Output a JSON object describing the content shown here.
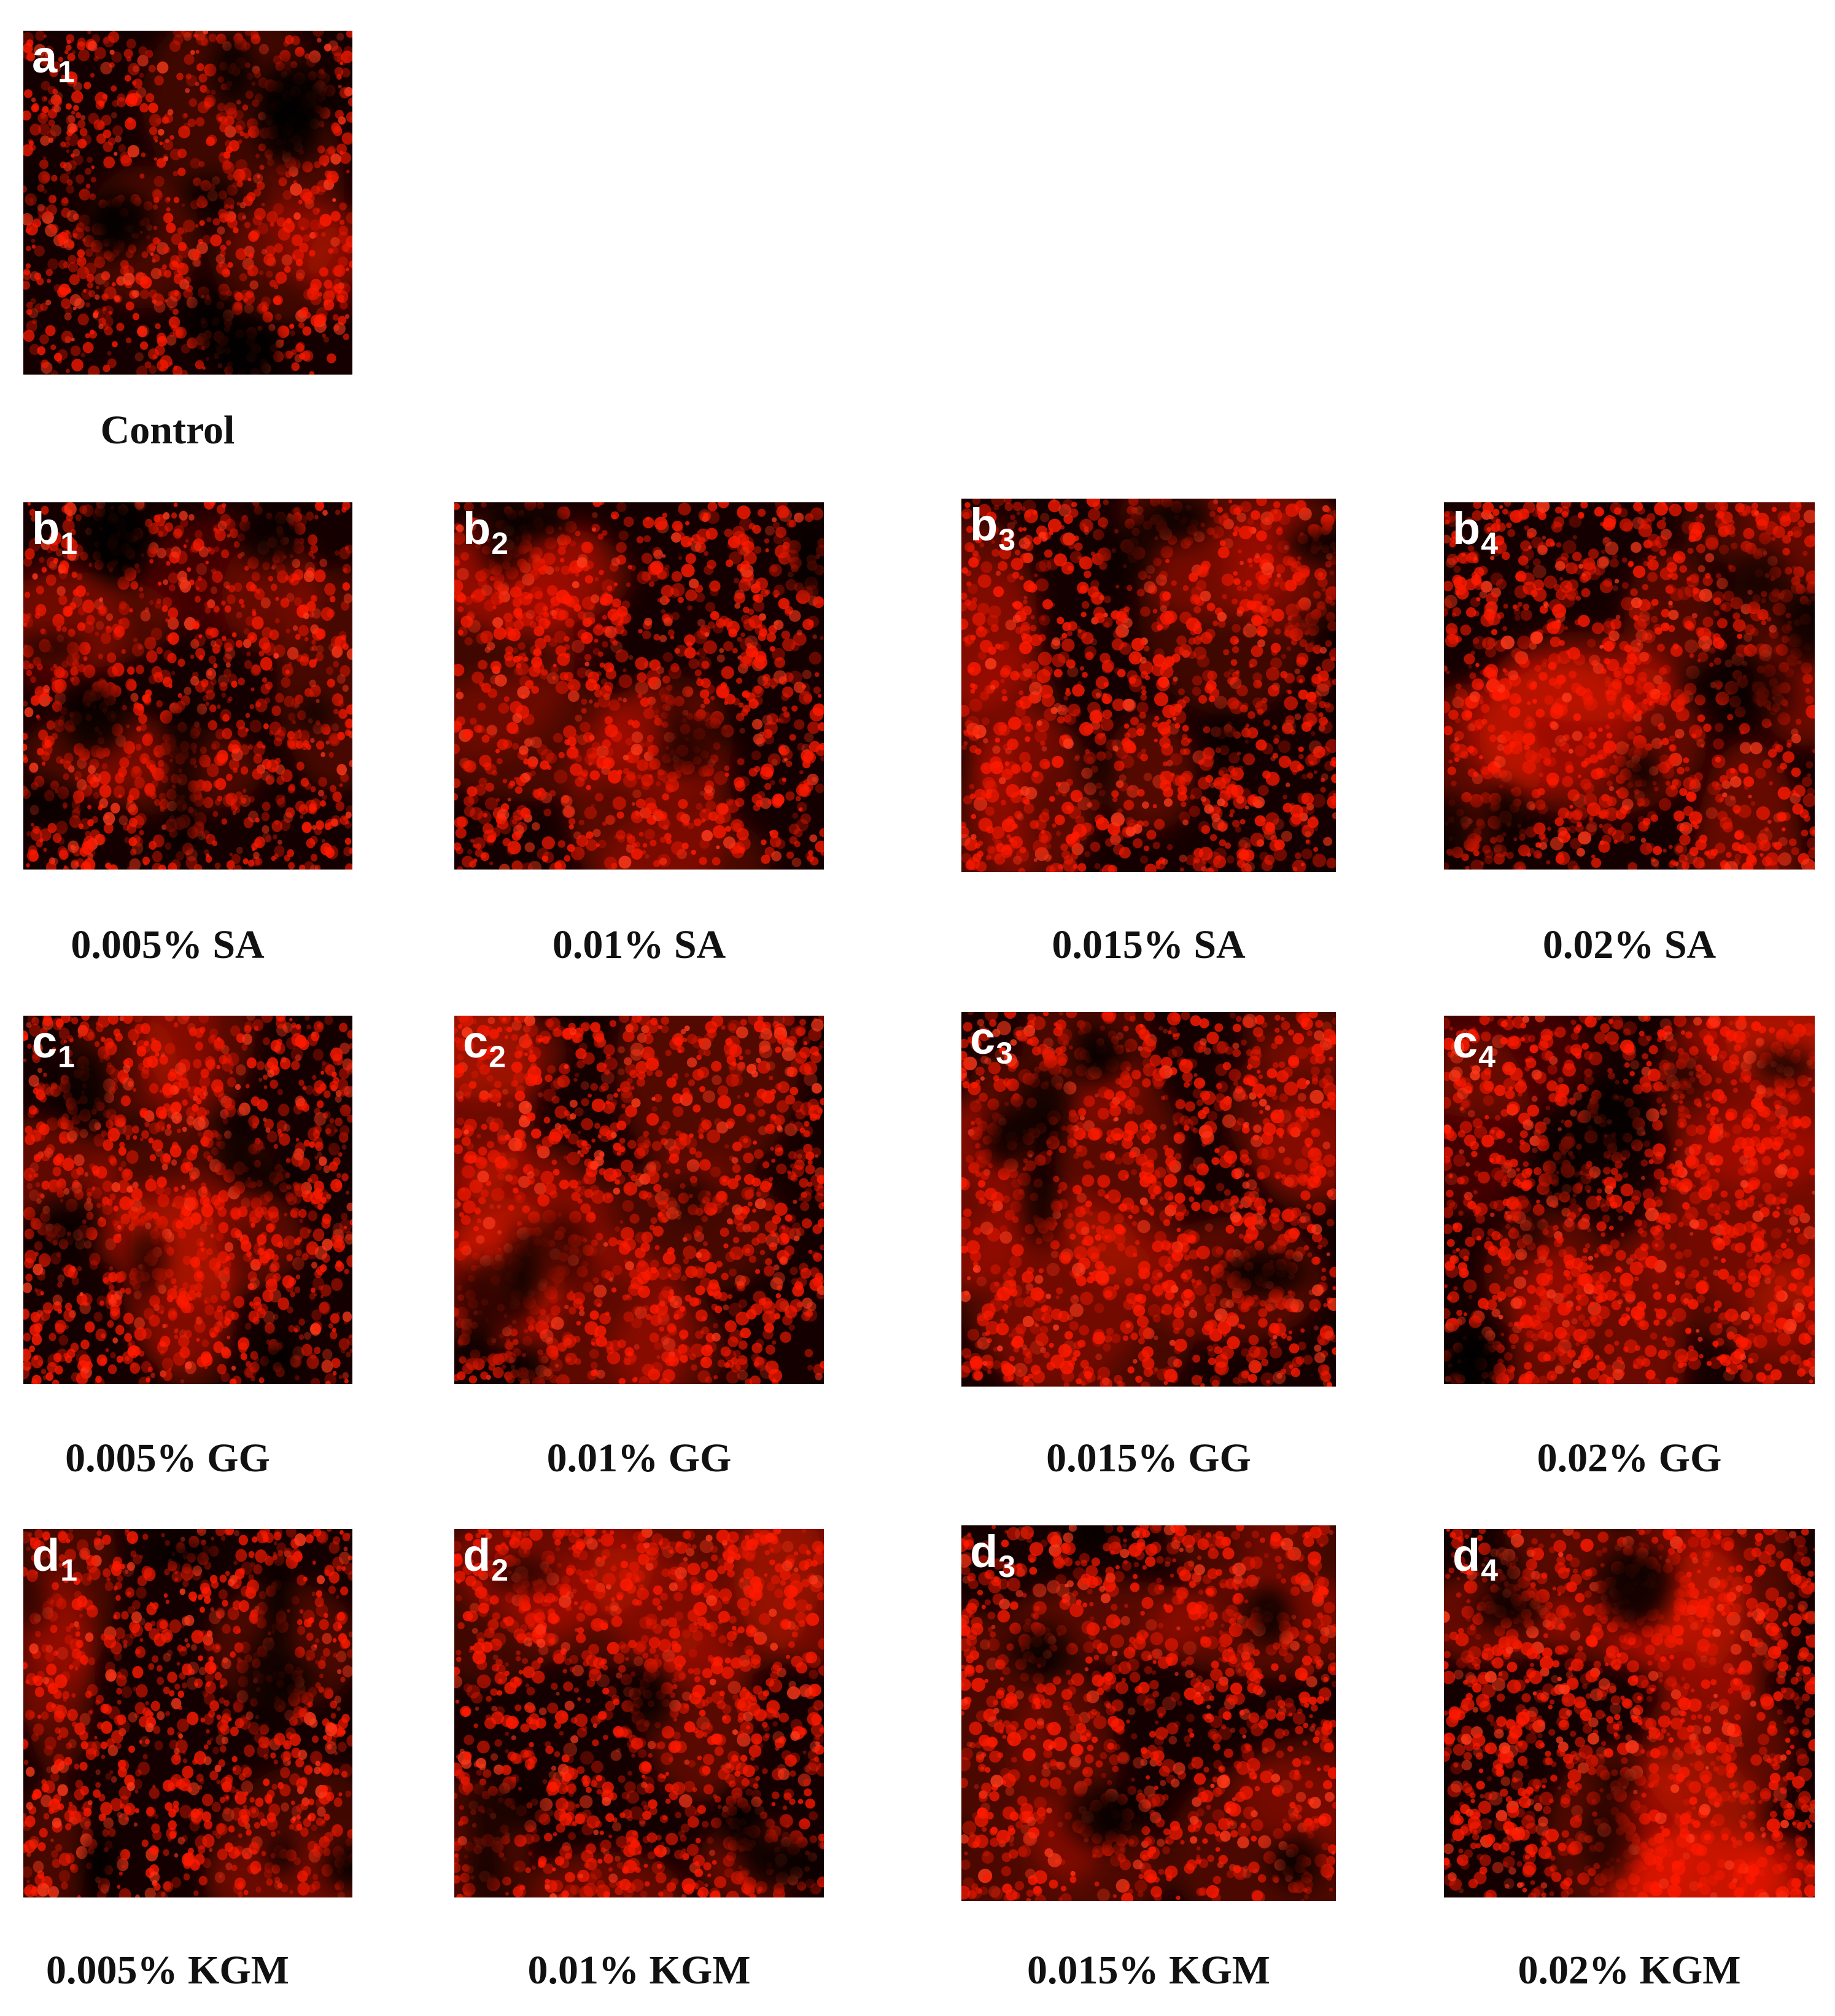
{
  "figure": {
    "tint_color": "#ff1a00",
    "background_color": "#000000",
    "panels": [
      {
        "id": "a1",
        "letter": "a",
        "index": "1",
        "caption": "Control"
      },
      {
        "id": "b1",
        "letter": "b",
        "index": "1",
        "caption": "0.005% SA"
      },
      {
        "id": "b2",
        "letter": "b",
        "index": "2",
        "caption": "0.01% SA"
      },
      {
        "id": "b3",
        "letter": "b",
        "index": "3",
        "caption": "0.015% SA"
      },
      {
        "id": "b4",
        "letter": "b",
        "index": "4",
        "caption": "0.02% SA"
      },
      {
        "id": "c1",
        "letter": "c",
        "index": "1",
        "caption": "0.005% GG"
      },
      {
        "id": "c2",
        "letter": "c",
        "index": "2",
        "caption": "0.01% GG"
      },
      {
        "id": "c3",
        "letter": "c",
        "index": "3",
        "caption": "0.015% GG"
      },
      {
        "id": "c4",
        "letter": "c",
        "index": "4",
        "caption": "0.02% GG"
      },
      {
        "id": "d1",
        "letter": "d",
        "index": "1",
        "caption": "0.005% KGM"
      },
      {
        "id": "d2",
        "letter": "d",
        "index": "2",
        "caption": "0.01% KGM"
      },
      {
        "id": "d3",
        "letter": "d",
        "index": "3",
        "caption": "0.015% KGM"
      },
      {
        "id": "d4",
        "letter": "d",
        "index": "4",
        "caption": "0.02% KGM"
      }
    ]
  }
}
